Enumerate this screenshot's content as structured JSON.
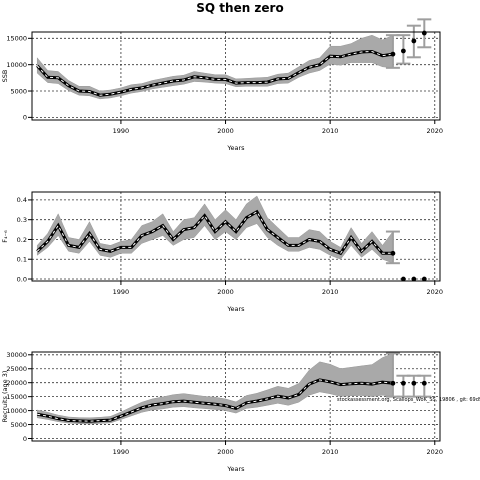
{
  "title": "SQ then zero",
  "watermark": "stockassessment.org, Scallops_WoK_SS, 19806 , git: 69d9",
  "chart_data": [
    {
      "type": "line",
      "xlabel": "Years",
      "ylabel": "SSB",
      "xlim": [
        1981.5,
        2020.5
      ],
      "ylim": [
        -500,
        16200
      ],
      "xticks": [
        1990,
        2000,
        2010,
        2020
      ],
      "yticks": [
        0,
        5000,
        10000,
        15000
      ],
      "grid": true,
      "years": [
        1982,
        1983,
        1984,
        1985,
        1986,
        1987,
        1988,
        1989,
        1990,
        1991,
        1992,
        1993,
        1994,
        1995,
        1996,
        1997,
        1998,
        1999,
        2000,
        2001,
        2002,
        2003,
        2004,
        2005,
        2006,
        2007,
        2008,
        2009,
        2010,
        2011,
        2012,
        2013,
        2014,
        2015,
        2016
      ],
      "estimate": [
        9800,
        7600,
        7500,
        6000,
        5000,
        4900,
        4200,
        4400,
        4800,
        5300,
        5600,
        6100,
        6500,
        6900,
        7100,
        7700,
        7500,
        7200,
        7200,
        6500,
        6600,
        6600,
        6700,
        7300,
        7400,
        8500,
        9500,
        10000,
        11600,
        11500,
        12000,
        12400,
        12500,
        11700,
        12000
      ],
      "lower": [
        8400,
        6600,
        6400,
        5100,
        4200,
        4100,
        3500,
        3700,
        4100,
        4600,
        4900,
        5400,
        5700,
        6000,
        6300,
        6800,
        6700,
        6500,
        6400,
        5800,
        5900,
        5900,
        5900,
        6400,
        6500,
        7600,
        8400,
        8900,
        10100,
        9900,
        10400,
        10400,
        10400,
        9600,
        9400
      ],
      "upper": [
        11300,
        8900,
        8700,
        7000,
        5900,
        5900,
        5000,
        5200,
        5600,
        6200,
        6400,
        7000,
        7400,
        7800,
        8000,
        8700,
        8400,
        8100,
        8100,
        7300,
        7400,
        7500,
        7600,
        8200,
        8400,
        9600,
        10800,
        11300,
        13500,
        13500,
        14000,
        15000,
        15600,
        14700,
        15600
      ],
      "forecast": {
        "years": [
          2016,
          2017,
          2018,
          2019
        ],
        "median": [
          12000,
          12600,
          14500,
          16000
        ],
        "lower": [
          9400,
          10200,
          11400,
          13300
        ],
        "upper": [
          15600,
          15600,
          17400,
          18600
        ]
      }
    },
    {
      "type": "line",
      "xlabel": "Years",
      "ylabel": "F₄₋₆",
      "xlim": [
        1981.5,
        2020.5
      ],
      "ylim": [
        -0.01,
        0.44
      ],
      "xticks": [
        1990,
        2000,
        2010,
        2020
      ],
      "yticks": [
        0.0,
        0.1,
        0.2,
        0.3,
        0.4
      ],
      "grid": true,
      "years": [
        1982,
        1983,
        1984,
        1985,
        1986,
        1987,
        1988,
        1989,
        1990,
        1991,
        1992,
        1993,
        1994,
        1995,
        1996,
        1997,
        1998,
        1999,
        2000,
        2001,
        2002,
        2003,
        2004,
        2005,
        2006,
        2007,
        2008,
        2009,
        2010,
        2011,
        2012,
        2013,
        2014,
        2015,
        2016
      ],
      "estimate": [
        0.14,
        0.19,
        0.27,
        0.17,
        0.16,
        0.23,
        0.15,
        0.14,
        0.16,
        0.16,
        0.22,
        0.24,
        0.27,
        0.2,
        0.25,
        0.26,
        0.32,
        0.24,
        0.29,
        0.24,
        0.31,
        0.34,
        0.25,
        0.21,
        0.17,
        0.17,
        0.2,
        0.19,
        0.15,
        0.13,
        0.21,
        0.14,
        0.19,
        0.13,
        0.13
      ],
      "lower": [
        0.12,
        0.16,
        0.22,
        0.14,
        0.13,
        0.19,
        0.12,
        0.11,
        0.13,
        0.13,
        0.18,
        0.2,
        0.22,
        0.17,
        0.2,
        0.21,
        0.27,
        0.2,
        0.24,
        0.2,
        0.26,
        0.28,
        0.21,
        0.17,
        0.14,
        0.14,
        0.16,
        0.15,
        0.12,
        0.1,
        0.17,
        0.11,
        0.15,
        0.1,
        0.08
      ],
      "upper": [
        0.17,
        0.23,
        0.33,
        0.21,
        0.2,
        0.29,
        0.18,
        0.17,
        0.19,
        0.2,
        0.27,
        0.29,
        0.33,
        0.24,
        0.3,
        0.31,
        0.38,
        0.3,
        0.35,
        0.3,
        0.38,
        0.42,
        0.31,
        0.26,
        0.21,
        0.21,
        0.25,
        0.24,
        0.19,
        0.16,
        0.26,
        0.18,
        0.24,
        0.17,
        0.24
      ],
      "forecast": {
        "years": [
          2016,
          2017,
          2018,
          2019
        ],
        "median": [
          0.13,
          0.0,
          0.0,
          0.0
        ],
        "lower": [
          0.08,
          0.0,
          0.0,
          0.0
        ],
        "upper": [
          0.24,
          0.0,
          0.0,
          0.0
        ]
      }
    },
    {
      "type": "line",
      "xlabel": "Years",
      "ylabel": "Recruits (age 3)",
      "xlim": [
        1981.5,
        2020.5
      ],
      "ylim": [
        -900,
        31000
      ],
      "xticks": [
        1990,
        2000,
        2010,
        2020
      ],
      "yticks": [
        0,
        5000,
        10000,
        15000,
        20000,
        25000,
        30000
      ],
      "grid": true,
      "years": [
        1982,
        1983,
        1984,
        1985,
        1986,
        1987,
        1988,
        1989,
        1990,
        1991,
        1992,
        1993,
        1994,
        1995,
        1996,
        1997,
        1998,
        1999,
        2000,
        2001,
        2002,
        2003,
        2004,
        2005,
        2006,
        2007,
        2008,
        2009,
        2010,
        2011,
        2012,
        2013,
        2014,
        2015,
        2016
      ],
      "estimate": [
        8700,
        8000,
        7100,
        6500,
        6300,
        6200,
        6400,
        6600,
        8000,
        9500,
        11000,
        12000,
        12500,
        13200,
        13400,
        13000,
        12600,
        12300,
        11800,
        10800,
        12800,
        13400,
        14200,
        15200,
        14500,
        15800,
        19500,
        21000,
        20300,
        19300,
        19600,
        19800,
        19500,
        20200,
        19800
      ],
      "lower": [
        7400,
        6800,
        6000,
        5500,
        5300,
        5200,
        5400,
        5600,
        6800,
        8100,
        9400,
        10200,
        10600,
        11200,
        11400,
        11000,
        10700,
        10400,
        10000,
        9100,
        10800,
        11200,
        11900,
        12600,
        11900,
        13000,
        15500,
        16700,
        16000,
        15100,
        15300,
        15400,
        15000,
        15500,
        15000
      ],
      "upper": [
        10200,
        9400,
        8400,
        7700,
        7500,
        7400,
        7600,
        7900,
        9500,
        11300,
        13000,
        14200,
        14900,
        15700,
        16100,
        15600,
        15100,
        14800,
        14200,
        13100,
        15400,
        16200,
        17400,
        18700,
        18000,
        19700,
        24500,
        27500,
        26600,
        25000,
        25500,
        26000,
        26500,
        29000,
        30500
      ],
      "forecast": {
        "years": [
          2016,
          2017,
          2018,
          2019
        ],
        "median": [
          19800,
          19800,
          19800,
          19800
        ],
        "lower": [
          15000,
          15000,
          15000,
          15000
        ],
        "upper": [
          30500,
          22500,
          22500,
          22500
        ]
      }
    }
  ]
}
